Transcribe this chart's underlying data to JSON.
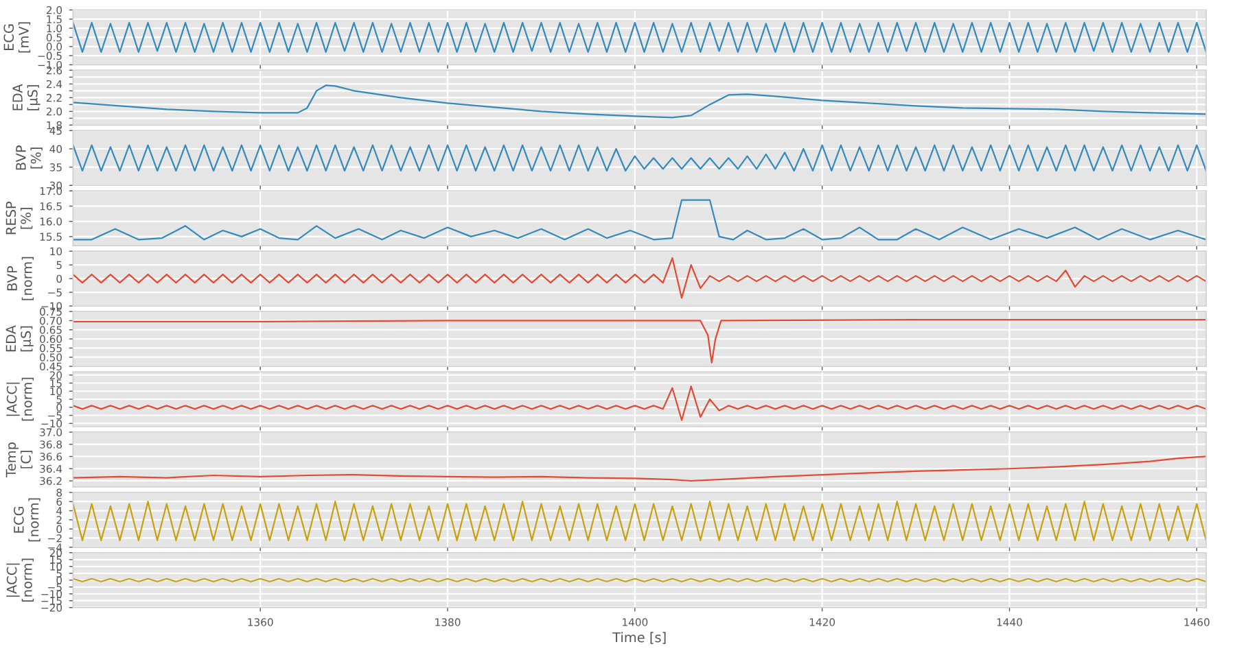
{
  "chart_data": [
    {
      "type": "line",
      "ylabel": "ECG\n[mV]",
      "xlim": [
        1340,
        1461
      ],
      "xticks": [
        1360,
        1380,
        1400,
        1420,
        1440,
        1460
      ],
      "ylim": [
        -1.0,
        2.0
      ],
      "yticks": [
        {
          "value": -1.0,
          "label": "−1.0"
        },
        {
          "value": -0.5,
          "label": "−0.5"
        },
        {
          "value": 0.0,
          "label": "0.0"
        },
        {
          "value": 0.5,
          "label": "0.5"
        },
        {
          "value": 1.0,
          "label": "1.0"
        },
        {
          "value": 1.5,
          "label": "1.5"
        },
        {
          "value": 2.0,
          "label": "2.0"
        }
      ],
      "grid": true,
      "tick_labels": "y",
      "x": [
        1340,
        1341,
        1342,
        1343,
        1344,
        1345,
        1346,
        1347,
        1348,
        1349,
        1350,
        1351,
        1352,
        1353,
        1354,
        1355,
        1356,
        1357,
        1358,
        1359,
        1360,
        1361,
        1362,
        1363,
        1364,
        1365,
        1366,
        1367,
        1368,
        1369,
        1370,
        1371,
        1372,
        1373,
        1374,
        1375,
        1376,
        1377,
        1378,
        1379,
        1380,
        1381,
        1382,
        1383,
        1384,
        1385,
        1386,
        1387,
        1388,
        1389,
        1390,
        1391,
        1392,
        1393,
        1394,
        1395,
        1396,
        1397,
        1398,
        1399,
        1400,
        1401,
        1402,
        1403,
        1404,
        1405,
        1406,
        1407,
        1408,
        1409,
        1410,
        1411,
        1412,
        1413,
        1414,
        1415,
        1416,
        1417,
        1418,
        1419,
        1420,
        1421,
        1422,
        1423,
        1424,
        1425,
        1426,
        1427,
        1428,
        1429,
        1430,
        1431,
        1432,
        1433,
        1434,
        1435,
        1436,
        1437,
        1438,
        1439,
        1440,
        1441,
        1442,
        1443,
        1444,
        1445,
        1446,
        1447,
        1448,
        1449,
        1450,
        1451,
        1452,
        1453,
        1454,
        1455,
        1456,
        1457,
        1458,
        1459,
        1460,
        1461
      ],
      "series": [
        {
          "color": "#348abd",
          "values": [
            1.3,
            -0.3,
            1.3,
            -0.3,
            1.25,
            -0.3,
            1.3,
            -0.3,
            1.3,
            -0.25,
            1.3,
            -0.3,
            1.3,
            -0.3,
            1.25,
            -0.3,
            1.3,
            -0.3,
            1.3,
            -0.3,
            1.3,
            -0.3,
            1.3,
            -0.3,
            1.25,
            -0.3,
            1.3,
            -0.3,
            1.3,
            -0.25,
            1.3,
            -0.3,
            1.3,
            -0.3,
            1.25,
            -0.3,
            1.3,
            -0.3,
            1.3,
            -0.3,
            1.3,
            -0.3,
            1.3,
            -0.3,
            1.25,
            -0.3,
            1.3,
            -0.3,
            1.3,
            -0.25,
            1.3,
            -0.3,
            1.3,
            -0.3,
            1.25,
            -0.3,
            1.3,
            -0.3,
            1.3,
            -0.3,
            1.3,
            -0.3,
            1.3,
            -0.3,
            1.25,
            -0.3,
            1.3,
            -0.3,
            1.3,
            -0.25,
            1.3,
            -0.3,
            1.3,
            -0.3,
            1.25,
            -0.3,
            1.3,
            -0.3,
            1.3,
            -0.3,
            1.3,
            -0.3,
            1.3,
            -0.3,
            1.25,
            -0.3,
            1.3,
            -0.3,
            1.3,
            -0.25,
            1.3,
            -0.3,
            1.3,
            -0.3,
            1.25,
            -0.3,
            1.3,
            -0.3,
            1.3,
            -0.3,
            1.3,
            -0.3,
            1.3,
            -0.3,
            1.25,
            -0.3,
            1.3,
            -0.3,
            1.3,
            -0.25,
            1.3,
            -0.3,
            1.3,
            -0.3,
            1.25,
            -0.3,
            1.3,
            -0.3,
            1.3,
            -0.3,
            1.3,
            -0.3
          ]
        }
      ]
    },
    {
      "type": "line",
      "ylabel": "EDA\n[μS]",
      "xlim": [
        1340,
        1461
      ],
      "xticks": [
        1360,
        1380,
        1400,
        1420,
        1440,
        1460
      ],
      "ylim": [
        1.8,
        2.6
      ],
      "yticks": [
        {
          "value": 1.8,
          "label": "1.8"
        },
        {
          "value": 1.9,
          "label": null
        },
        {
          "value": 2.0,
          "label": "2.0"
        },
        {
          "value": 2.1,
          "label": null
        },
        {
          "value": 2.2,
          "label": "2.2"
        },
        {
          "value": 2.3,
          "label": null
        },
        {
          "value": 2.4,
          "label": "2.4"
        },
        {
          "value": 2.5,
          "label": null
        },
        {
          "value": 2.6,
          "label": "2.6"
        }
      ],
      "grid": true,
      "tick_labels": "y",
      "x": [
        1340,
        1345,
        1350,
        1355,
        1360,
        1364,
        1365,
        1366,
        1367,
        1368,
        1370,
        1375,
        1380,
        1385,
        1390,
        1395,
        1400,
        1404,
        1406,
        1408,
        1410,
        1412,
        1415,
        1420,
        1425,
        1430,
        1435,
        1440,
        1445,
        1450,
        1455,
        1461
      ],
      "series": [
        {
          "color": "#348abd",
          "values": [
            2.13,
            2.08,
            2.03,
            2.0,
            1.98,
            1.98,
            2.05,
            2.3,
            2.38,
            2.37,
            2.3,
            2.2,
            2.12,
            2.06,
            2.0,
            1.96,
            1.93,
            1.91,
            1.94,
            2.1,
            2.24,
            2.25,
            2.22,
            2.16,
            2.12,
            2.08,
            2.05,
            2.04,
            2.03,
            2.0,
            1.98,
            1.96
          ]
        }
      ]
    },
    {
      "type": "line",
      "ylabel": "BVP\n[%]",
      "xlim": [
        1340,
        1461
      ],
      "xticks": [
        1360,
        1380,
        1400,
        1420,
        1440,
        1460
      ],
      "ylim": [
        30,
        45
      ],
      "yticks": [
        {
          "value": 30,
          "label": "30"
        },
        {
          "value": 35,
          "label": "35"
        },
        {
          "value": 40,
          "label": "40"
        },
        {
          "value": 45,
          "label": "45"
        }
      ],
      "grid": true,
      "tick_labels": "y",
      "x": [
        1340,
        1341,
        1342,
        1343,
        1344,
        1345,
        1346,
        1347,
        1348,
        1349,
        1350,
        1351,
        1352,
        1353,
        1354,
        1355,
        1356,
        1357,
        1358,
        1359,
        1360,
        1361,
        1362,
        1363,
        1364,
        1365,
        1366,
        1367,
        1368,
        1369,
        1370,
        1371,
        1372,
        1373,
        1374,
        1375,
        1376,
        1377,
        1378,
        1379,
        1380,
        1381,
        1382,
        1383,
        1384,
        1385,
        1386,
        1387,
        1388,
        1389,
        1390,
        1391,
        1392,
        1393,
        1394,
        1395,
        1396,
        1397,
        1398,
        1399,
        1400,
        1401,
        1402,
        1403,
        1404,
        1405,
        1406,
        1407,
        1408,
        1409,
        1410,
        1411,
        1412,
        1413,
        1414,
        1415,
        1416,
        1417,
        1418,
        1419,
        1420,
        1421,
        1422,
        1423,
        1424,
        1425,
        1426,
        1427,
        1428,
        1429,
        1430,
        1431,
        1432,
        1433,
        1434,
        1435,
        1436,
        1437,
        1438,
        1439,
        1440,
        1441,
        1442,
        1443,
        1444,
        1445,
        1446,
        1447,
        1448,
        1449,
        1450,
        1451,
        1452,
        1453,
        1454,
        1455,
        1456,
        1457,
        1458,
        1459,
        1460,
        1461
      ],
      "series": [
        {
          "color": "#348abd",
          "values": [
            41,
            34,
            41,
            34,
            40.5,
            34,
            41,
            34,
            41,
            34,
            40.5,
            34,
            41,
            34,
            41,
            34,
            40.5,
            34,
            41,
            34,
            41,
            34,
            41,
            34,
            40.5,
            34,
            41,
            34,
            41,
            34,
            40.5,
            34,
            41,
            34,
            41,
            34,
            40.5,
            34,
            41,
            34,
            41,
            34,
            41,
            34,
            40.5,
            34,
            41,
            34,
            41,
            34,
            40.5,
            34,
            41,
            34,
            41,
            34,
            40.5,
            34,
            40,
            34,
            38,
            34.5,
            37.5,
            34.5,
            37.5,
            34.5,
            37.5,
            34.5,
            37.5,
            34.5,
            37.5,
            34.5,
            38,
            34.5,
            38.5,
            34.5,
            39,
            34,
            40,
            34,
            41,
            34,
            41,
            34,
            40.5,
            34,
            41,
            34,
            41,
            34,
            40.5,
            34,
            41,
            34,
            41,
            34,
            40.5,
            34,
            41,
            34,
            41,
            34,
            41,
            34,
            40.5,
            34,
            41,
            34,
            41,
            34,
            40.5,
            34,
            41,
            34,
            41,
            34,
            40.5,
            34,
            41,
            34,
            41,
            34
          ]
        }
      ]
    },
    {
      "type": "line",
      "ylabel": "RESP\n[%]",
      "xlim": [
        1340,
        1461
      ],
      "xticks": [
        1360,
        1380,
        1400,
        1420,
        1440,
        1460
      ],
      "ylim": [
        15.2,
        17.0
      ],
      "yticks": [
        {
          "value": 15.5,
          "label": "15.5"
        },
        {
          "value": 16.0,
          "label": "16.0"
        },
        {
          "value": 16.5,
          "label": "16.5"
        },
        {
          "value": 17.0,
          "label": "17.0"
        }
      ],
      "grid": true,
      "tick_labels": "y",
      "x": [
        1340,
        1342,
        1344.5,
        1347,
        1349.5,
        1352,
        1354,
        1356,
        1358,
        1360,
        1362,
        1364,
        1366,
        1368,
        1370.5,
        1373,
        1375,
        1377.5,
        1380,
        1382.5,
        1385,
        1387.5,
        1390,
        1392.5,
        1395,
        1397,
        1399.5,
        1402,
        1404,
        1405,
        1408,
        1409,
        1410.5,
        1412,
        1414,
        1416,
        1418,
        1420,
        1422,
        1424,
        1426,
        1428,
        1430,
        1432.5,
        1435,
        1438,
        1441,
        1444,
        1447,
        1449.5,
        1452,
        1455,
        1458,
        1461
      ],
      "series": [
        {
          "color": "#348abd",
          "values": [
            15.4,
            15.4,
            15.75,
            15.4,
            15.45,
            15.85,
            15.4,
            15.7,
            15.5,
            15.75,
            15.45,
            15.4,
            15.85,
            15.45,
            15.75,
            15.4,
            15.7,
            15.45,
            15.8,
            15.5,
            15.7,
            15.45,
            15.75,
            15.4,
            15.75,
            15.45,
            15.7,
            15.4,
            15.45,
            16.7,
            16.7,
            15.5,
            15.4,
            15.7,
            15.4,
            15.45,
            15.75,
            15.4,
            15.45,
            15.8,
            15.4,
            15.4,
            15.75,
            15.4,
            15.8,
            15.4,
            15.75,
            15.45,
            15.8,
            15.4,
            15.75,
            15.4,
            15.7,
            15.4
          ]
        }
      ]
    },
    {
      "type": "line",
      "ylabel": "BVP\n[norm]",
      "xlim": [
        1340,
        1461
      ],
      "xticks": [
        1360,
        1380,
        1400,
        1420,
        1440,
        1460
      ],
      "ylim": [
        -10,
        10
      ],
      "yticks": [
        {
          "value": -10,
          "label": "−10"
        },
        {
          "value": -5,
          "label": "−5"
        },
        {
          "value": 0,
          "label": "0"
        },
        {
          "value": 5,
          "label": "5"
        },
        {
          "value": 10,
          "label": "10"
        }
      ],
      "grid": true,
      "tick_labels": "y",
      "x": [
        1340,
        1341,
        1342,
        1343,
        1344,
        1345,
        1346,
        1347,
        1348,
        1349,
        1350,
        1351,
        1352,
        1353,
        1354,
        1355,
        1356,
        1357,
        1358,
        1359,
        1360,
        1361,
        1362,
        1363,
        1364,
        1365,
        1366,
        1367,
        1368,
        1369,
        1370,
        1371,
        1372,
        1373,
        1374,
        1375,
        1376,
        1377,
        1378,
        1379,
        1380,
        1381,
        1382,
        1383,
        1384,
        1385,
        1386,
        1387,
        1388,
        1389,
        1390,
        1391,
        1392,
        1393,
        1394,
        1395,
        1396,
        1397,
        1398,
        1399,
        1400,
        1401,
        1402,
        1403,
        1404,
        1405,
        1406,
        1407,
        1408,
        1409,
        1410,
        1411,
        1412,
        1413,
        1414,
        1415,
        1416,
        1417,
        1418,
        1419,
        1420,
        1421,
        1422,
        1423,
        1424,
        1425,
        1426,
        1427,
        1428,
        1429,
        1430,
        1431,
        1432,
        1433,
        1434,
        1435,
        1436,
        1437,
        1438,
        1439,
        1440,
        1441,
        1442,
        1443,
        1444,
        1445,
        1446,
        1447,
        1448,
        1449,
        1450,
        1451,
        1452,
        1453,
        1454,
        1455,
        1456,
        1457,
        1458,
        1459,
        1460,
        1461
      ],
      "series": [
        {
          "color": "#e24a33",
          "values": [
            1.5,
            -1.5,
            1.5,
            -1.5,
            1.5,
            -1.5,
            1.5,
            -1.5,
            1.5,
            -1.5,
            1.5,
            -1.5,
            1.5,
            -1.5,
            1.5,
            -1.5,
            1.5,
            -1.5,
            1.5,
            -1.5,
            1.5,
            -1.5,
            1.5,
            -1.5,
            1.5,
            -1.5,
            1.5,
            -1.5,
            1.5,
            -1.5,
            1.5,
            -1.5,
            1.5,
            -1.5,
            1.5,
            -1.5,
            1.5,
            -1.5,
            1.5,
            -1.5,
            1.5,
            -1.5,
            1.5,
            -1.5,
            1.5,
            -1.5,
            1.5,
            -1.5,
            1.5,
            -1.5,
            1.5,
            -1.5,
            1.5,
            -1.5,
            1.5,
            -1.5,
            1.5,
            -1.5,
            1.5,
            -1.5,
            1.5,
            -1.5,
            1.5,
            -1.5,
            7.5,
            -7,
            5,
            -3.5,
            1,
            -1,
            1,
            -1,
            1,
            -1,
            1,
            -1,
            1,
            -1,
            1,
            -1,
            1,
            -1,
            1,
            -1,
            1,
            -1,
            1,
            -1,
            1,
            -1,
            1,
            -1,
            1,
            -1,
            1,
            -1,
            1,
            -1,
            1,
            -1,
            1,
            -1,
            1,
            -1,
            1,
            -1,
            3,
            -3,
            1,
            -1,
            1,
            -1,
            1,
            -1,
            1,
            -1,
            1,
            -1,
            1,
            -1,
            1,
            -1
          ]
        }
      ]
    },
    {
      "type": "line",
      "ylabel": "EDA\n[μS]",
      "xlim": [
        1340,
        1461
      ],
      "xticks": [
        1360,
        1380,
        1400,
        1420,
        1440,
        1460
      ],
      "ylim": [
        0.45,
        0.75
      ],
      "yticks": [
        {
          "value": 0.45,
          "label": "0.45"
        },
        {
          "value": 0.5,
          "label": "0.50"
        },
        {
          "value": 0.55,
          "label": "0.55"
        },
        {
          "value": 0.6,
          "label": "0.60"
        },
        {
          "value": 0.65,
          "label": "0.65"
        },
        {
          "value": 0.7,
          "label": "0.70"
        },
        {
          "value": 0.75,
          "label": "0.75"
        }
      ],
      "grid": true,
      "tick_labels": "y",
      "x": [
        1340,
        1360,
        1380,
        1400,
        1407,
        1407.8,
        1408.2,
        1408.6,
        1409.2,
        1430,
        1461
      ],
      "series": [
        {
          "color": "#e24a33",
          "values": [
            0.695,
            0.695,
            0.7,
            0.7,
            0.7,
            0.62,
            0.47,
            0.6,
            0.7,
            0.705,
            0.705
          ]
        }
      ]
    },
    {
      "type": "line",
      "ylabel": "|ACC|\n[norm]",
      "xlim": [
        1340,
        1461
      ],
      "xticks": [
        1360,
        1380,
        1400,
        1420,
        1440,
        1460
      ],
      "ylim": [
        -12,
        22
      ],
      "yticks": [
        {
          "value": -10,
          "label": "−10"
        },
        {
          "value": -5,
          "label": "−5"
        },
        {
          "value": 0,
          "label": "0"
        },
        {
          "value": 5,
          "label": "5"
        },
        {
          "value": 10,
          "label": "10"
        },
        {
          "value": 15,
          "label": "15"
        },
        {
          "value": 20,
          "label": "20"
        }
      ],
      "grid": true,
      "tick_labels": "y",
      "x": [
        1340,
        1341,
        1342,
        1343,
        1344,
        1345,
        1346,
        1347,
        1348,
        1349,
        1350,
        1351,
        1352,
        1353,
        1354,
        1355,
        1356,
        1357,
        1358,
        1359,
        1360,
        1361,
        1362,
        1363,
        1364,
        1365,
        1366,
        1367,
        1368,
        1369,
        1370,
        1371,
        1372,
        1373,
        1374,
        1375,
        1376,
        1377,
        1378,
        1379,
        1380,
        1381,
        1382,
        1383,
        1384,
        1385,
        1386,
        1387,
        1388,
        1389,
        1390,
        1391,
        1392,
        1393,
        1394,
        1395,
        1396,
        1397,
        1398,
        1399,
        1400,
        1401,
        1402,
        1403,
        1404,
        1405,
        1406,
        1407,
        1408,
        1409,
        1410,
        1411,
        1412,
        1413,
        1414,
        1415,
        1416,
        1417,
        1418,
        1419,
        1420,
        1421,
        1422,
        1423,
        1424,
        1425,
        1426,
        1427,
        1428,
        1429,
        1430,
        1431,
        1432,
        1433,
        1434,
        1435,
        1436,
        1437,
        1438,
        1439,
        1440,
        1441,
        1442,
        1443,
        1444,
        1445,
        1446,
        1447,
        1448,
        1449,
        1450,
        1451,
        1452,
        1453,
        1454,
        1455,
        1456,
        1457,
        1458,
        1459,
        1460,
        1461
      ],
      "series": [
        {
          "color": "#e24a33",
          "values": [
            1,
            -1,
            1,
            -1,
            1,
            -1,
            1,
            -1,
            1,
            -1,
            1,
            -1,
            1,
            -1,
            1,
            -1,
            1,
            -1,
            1,
            -1,
            1,
            -1,
            1,
            -1,
            1,
            -1,
            1,
            -1,
            1,
            -1,
            1,
            -1,
            1,
            -1,
            1,
            -1,
            1,
            -1,
            1,
            -1,
            1,
            -1,
            1,
            -1,
            1,
            -1,
            1,
            -1,
            1,
            -1,
            1,
            -1,
            1,
            -1,
            1,
            -1,
            1,
            -1,
            1,
            -1,
            1,
            -1,
            1,
            -1,
            12,
            -8,
            13,
            -6,
            5,
            -2,
            1,
            -1,
            1,
            -1,
            1,
            -1,
            1,
            -1,
            1,
            -1,
            1,
            -1,
            1,
            -1,
            1,
            -1,
            1,
            -1,
            1,
            -1,
            1,
            -1,
            1,
            -1,
            1,
            -1,
            1,
            -1,
            1,
            -1,
            1,
            -1,
            1,
            -1,
            1,
            -1,
            1,
            -1,
            1,
            -1,
            1,
            -1,
            1,
            -1,
            1,
            -1,
            1,
            -1,
            1,
            -1,
            1,
            -1
          ]
        }
      ]
    },
    {
      "type": "line",
      "ylabel": "Temp\n[C]",
      "xlim": [
        1340,
        1461
      ],
      "xticks": [
        1360,
        1380,
        1400,
        1420,
        1440,
        1460
      ],
      "ylim": [
        36.1,
        37.0
      ],
      "yticks": [
        {
          "value": 36.2,
          "label": "36.2"
        },
        {
          "value": 36.4,
          "label": "36.4"
        },
        {
          "value": 36.6,
          "label": "36.6"
        },
        {
          "value": 36.8,
          "label": "36.8"
        },
        {
          "value": 37.0,
          "label": "37.0"
        }
      ],
      "grid": true,
      "tick_labels": "y",
      "x": [
        1340,
        1345,
        1350,
        1355,
        1360,
        1365,
        1370,
        1375,
        1380,
        1385,
        1390,
        1395,
        1400,
        1404,
        1406,
        1410,
        1415,
        1420,
        1425,
        1430,
        1435,
        1440,
        1445,
        1450,
        1455,
        1458,
        1461
      ],
      "series": [
        {
          "color": "#e24a33",
          "values": [
            36.25,
            36.27,
            36.25,
            36.29,
            36.27,
            36.29,
            36.3,
            36.28,
            36.27,
            36.26,
            36.27,
            36.25,
            36.24,
            36.22,
            36.2,
            36.23,
            36.27,
            36.3,
            36.33,
            36.36,
            36.38,
            36.4,
            36.43,
            36.47,
            36.52,
            36.57,
            36.6
          ]
        }
      ]
    },
    {
      "type": "line",
      "ylabel": "ECG\n[norm]",
      "xlim": [
        1340,
        1461
      ],
      "xticks": [
        1360,
        1380,
        1400,
        1420,
        1440,
        1460
      ],
      "ylim": [
        -4,
        8
      ],
      "yticks": [
        {
          "value": -4,
          "label": "−4"
        },
        {
          "value": -2,
          "label": "−2"
        },
        {
          "value": 0,
          "label": "0"
        },
        {
          "value": 2,
          "label": "2"
        },
        {
          "value": 4,
          "label": "4"
        },
        {
          "value": 6,
          "label": "6"
        },
        {
          "value": 8,
          "label": "8"
        }
      ],
      "grid": true,
      "tick_labels": "y",
      "x": [
        1340,
        1341,
        1342,
        1343,
        1344,
        1345,
        1346,
        1347,
        1348,
        1349,
        1350,
        1351,
        1352,
        1353,
        1354,
        1355,
        1356,
        1357,
        1358,
        1359,
        1360,
        1361,
        1362,
        1363,
        1364,
        1365,
        1366,
        1367,
        1368,
        1369,
        1370,
        1371,
        1372,
        1373,
        1374,
        1375,
        1376,
        1377,
        1378,
        1379,
        1380,
        1381,
        1382,
        1383,
        1384,
        1385,
        1386,
        1387,
        1388,
        1389,
        1390,
        1391,
        1392,
        1393,
        1394,
        1395,
        1396,
        1397,
        1398,
        1399,
        1400,
        1401,
        1402,
        1403,
        1404,
        1405,
        1406,
        1407,
        1408,
        1409,
        1410,
        1411,
        1412,
        1413,
        1414,
        1415,
        1416,
        1417,
        1418,
        1419,
        1420,
        1421,
        1422,
        1423,
        1424,
        1425,
        1426,
        1427,
        1428,
        1429,
        1430,
        1431,
        1432,
        1433,
        1434,
        1435,
        1436,
        1437,
        1438,
        1439,
        1440,
        1441,
        1442,
        1443,
        1444,
        1445,
        1446,
        1447,
        1448,
        1449,
        1450,
        1451,
        1452,
        1453,
        1454,
        1455,
        1456,
        1457,
        1458,
        1459,
        1460,
        1461
      ],
      "series": [
        {
          "color": "#c9a10e",
          "values": [
            5.5,
            -2.5,
            5.5,
            -2.5,
            5,
            -2.5,
            5.5,
            -2.5,
            6,
            -2.5,
            5.5,
            -2.5,
            5,
            -2.5,
            5.5,
            -2.5,
            5.5,
            -2.5,
            5,
            -2.5,
            5.5,
            -2.5,
            5.5,
            -2.5,
            5,
            -2.5,
            5.5,
            -2.5,
            6,
            -2.5,
            5.5,
            -2.5,
            5,
            -2.5,
            5.5,
            -2.5,
            5.5,
            -2.5,
            5,
            -2.5,
            5.5,
            -2.5,
            5.5,
            -2.5,
            5,
            -2.5,
            5.5,
            -2.5,
            6,
            -2.5,
            5.5,
            -2.5,
            5,
            -2.5,
            5.5,
            -2.5,
            5.5,
            -2.5,
            5,
            -2.5,
            5.5,
            -2.5,
            5.5,
            -2.5,
            5,
            -2.5,
            5.5,
            -2.5,
            6,
            -2.5,
            5.5,
            -2.5,
            5,
            -2.5,
            5.5,
            -2.5,
            5.5,
            -2.5,
            5,
            -2.5,
            5.5,
            -2.5,
            5.5,
            -2.5,
            5,
            -2.5,
            5.5,
            -2.5,
            6,
            -2.5,
            5.5,
            -2.5,
            5,
            -2.5,
            5.5,
            -2.5,
            5.5,
            -2.5,
            5,
            -2.5,
            5.5,
            -2.5,
            5.5,
            -2.5,
            5,
            -2.5,
            5.5,
            -2.5,
            6,
            -2.5,
            5.5,
            -2.5,
            5,
            -2.5,
            5.5,
            -2.5,
            5.5,
            -2.5,
            5,
            -2.5,
            5.5,
            -2.5
          ]
        }
      ]
    },
    {
      "type": "line",
      "ylabel": "|ACC|\n[norm]",
      "xlabel": "Time [s]",
      "xlim": [
        1340,
        1461
      ],
      "xticks": [
        1360,
        1380,
        1400,
        1420,
        1440,
        1460
      ],
      "ylim": [
        -20,
        20
      ],
      "yticks": [
        {
          "value": -20,
          "label": "−20"
        },
        {
          "value": -15,
          "label": "−15"
        },
        {
          "value": -10,
          "label": "−10"
        },
        {
          "value": -5,
          "label": "−5"
        },
        {
          "value": 0,
          "label": "0"
        },
        {
          "value": 5,
          "label": "5"
        },
        {
          "value": 10,
          "label": "10"
        },
        {
          "value": 15,
          "label": "15"
        },
        {
          "value": 20,
          "label": "20"
        }
      ],
      "grid": true,
      "x": [
        1340,
        1341,
        1342,
        1343,
        1344,
        1345,
        1346,
        1347,
        1348,
        1349,
        1350,
        1351,
        1352,
        1353,
        1354,
        1355,
        1356,
        1357,
        1358,
        1359,
        1360,
        1361,
        1362,
        1363,
        1364,
        1365,
        1366,
        1367,
        1368,
        1369,
        1370,
        1371,
        1372,
        1373,
        1374,
        1375,
        1376,
        1377,
        1378,
        1379,
        1380,
        1381,
        1382,
        1383,
        1384,
        1385,
        1386,
        1387,
        1388,
        1389,
        1390,
        1391,
        1392,
        1393,
        1394,
        1395,
        1396,
        1397,
        1398,
        1399,
        1400,
        1401,
        1402,
        1403,
        1404,
        1405,
        1406,
        1407,
        1408,
        1409,
        1410,
        1411,
        1412,
        1413,
        1414,
        1415,
        1416,
        1417,
        1418,
        1419,
        1420,
        1421,
        1422,
        1423,
        1424,
        1425,
        1426,
        1427,
        1428,
        1429,
        1430,
        1431,
        1432,
        1433,
        1434,
        1435,
        1436,
        1437,
        1438,
        1439,
        1440,
        1441,
        1442,
        1443,
        1444,
        1445,
        1446,
        1447,
        1448,
        1449,
        1450,
        1451,
        1452,
        1453,
        1454,
        1455,
        1456,
        1457,
        1458,
        1459,
        1460,
        1461
      ],
      "series": [
        {
          "color": "#c9a10e",
          "values": [
            1,
            -1,
            1,
            -1,
            1,
            -1,
            1,
            -1,
            1,
            -1,
            1,
            -1,
            1,
            -1,
            1,
            -1,
            1,
            -1,
            1,
            -1,
            1,
            -1,
            1,
            -1,
            1,
            -1,
            1,
            -1,
            1,
            -1,
            1,
            -1,
            1,
            -1,
            1,
            -1,
            1,
            -1,
            1,
            -1,
            1,
            -1,
            1,
            -1,
            1,
            -1,
            1,
            -1,
            1,
            -1,
            1,
            -1,
            1,
            -1,
            1,
            -1,
            1,
            -1,
            1,
            -1,
            1,
            -1,
            1,
            -1,
            1,
            -1,
            1,
            -1,
            1,
            -1,
            1,
            -1,
            1,
            -1,
            1,
            -1,
            1,
            -1,
            1,
            -1,
            1,
            -1,
            1,
            -1,
            1,
            -1,
            1,
            -1,
            1,
            -1,
            1,
            -1,
            1,
            -1,
            1,
            -1,
            1,
            -1,
            1,
            -1,
            1,
            -1,
            1,
            -1,
            1,
            -1,
            1,
            -1,
            1,
            -1,
            1,
            -1,
            1,
            -1,
            1,
            -1,
            1,
            -1,
            1,
            -1,
            1,
            -1
          ]
        }
      ]
    }
  ]
}
